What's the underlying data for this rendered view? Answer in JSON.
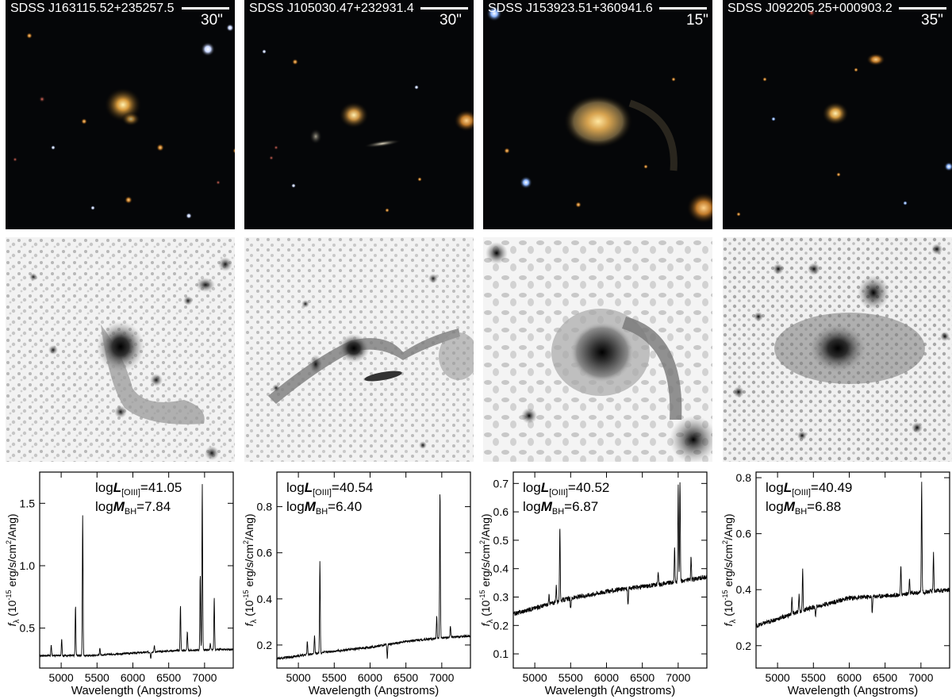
{
  "figure": {
    "columns": [
      {
        "name": "SDSS J163115.52+235257.5",
        "scale_label": "30\"",
        "log_L_value": "41.05",
        "log_M_value": "7.84",
        "spectrum": {
          "yticks": [
            "0.5",
            "1.0",
            "1.5"
          ],
          "ytick_values": [
            0.5,
            1.0,
            1.5
          ],
          "ylim": [
            0.18,
            1.75
          ],
          "continuum": [
            [
              4700,
              0.28
            ],
            [
              5400,
              0.28
            ],
            [
              6000,
              0.3
            ],
            [
              6600,
              0.32
            ],
            [
              7400,
              0.33
            ]
          ],
          "noise": 0.007,
          "lines": [
            [
              4861,
              0.08
            ],
            [
              5007,
              0.14
            ],
            [
              5200,
              0.4
            ],
            [
              5300,
              1.13
            ],
            [
              5540,
              0.06
            ],
            [
              6250,
              -0.05
            ],
            [
              6300,
              0.05
            ],
            [
              6664,
              0.36
            ],
            [
              6760,
              0.15
            ],
            [
              6940,
              0.6
            ],
            [
              6968,
              1.33
            ],
            [
              7080,
              0.05
            ],
            [
              7135,
              0.42
            ]
          ]
        }
      },
      {
        "name": "SDSS J105030.47+232931.4",
        "scale_label": "30\"",
        "log_L_value": "40.54",
        "log_M_value": "6.40",
        "spectrum": {
          "yticks": [
            "0.2",
            "0.4",
            "0.6",
            "0.8"
          ],
          "ytick_values": [
            0.2,
            0.4,
            0.6,
            0.8
          ],
          "ylim": [
            0.1,
            0.95
          ],
          "continuum": [
            [
              4700,
              0.14
            ],
            [
              5400,
              0.17
            ],
            [
              6000,
              0.19
            ],
            [
              6600,
              0.22
            ],
            [
              7400,
              0.24
            ]
          ],
          "noise": 0.005,
          "lines": [
            [
              5125,
              0.06
            ],
            [
              5225,
              0.08
            ],
            [
              5300,
              0.4
            ],
            [
              6240,
              -0.06
            ],
            [
              6930,
              0.1
            ],
            [
              6975,
              0.64
            ],
            [
              7120,
              0.05
            ]
          ]
        }
      },
      {
        "name": "SDSS J153923.51+360941.6",
        "scale_label": "15\"",
        "log_L_value": "40.52",
        "log_M_value": "6.87",
        "spectrum": {
          "yticks": [
            "0.1",
            "0.2",
            "0.3",
            "0.4",
            "0.5",
            "0.6",
            "0.7"
          ],
          "ytick_values": [
            0.1,
            0.2,
            0.3,
            0.4,
            0.5,
            0.6,
            0.7
          ],
          "ylim": [
            0.05,
            0.74
          ],
          "continuum": [
            [
              4700,
              0.24
            ],
            [
              5400,
              0.29
            ],
            [
              6000,
              0.32
            ],
            [
              6600,
              0.34
            ],
            [
              7400,
              0.37
            ]
          ],
          "noise": 0.008,
          "lines": [
            [
              5200,
              0.03
            ],
            [
              5300,
              0.06
            ],
            [
              5350,
              0.26
            ],
            [
              5500,
              -0.04
            ],
            [
              6300,
              -0.06
            ],
            [
              6720,
              0.04
            ],
            [
              6950,
              0.12
            ],
            [
              7000,
              0.34
            ],
            [
              7025,
              0.35
            ],
            [
              7180,
              0.08
            ]
          ]
        }
      },
      {
        "name": "SDSS J092205.25+000903.2",
        "scale_label": "35\"",
        "log_L_value": "40.49",
        "log_M_value": "6.88",
        "spectrum": {
          "yticks": [
            "0.2",
            "0.4",
            "0.6",
            "0.8"
          ],
          "ytick_values": [
            0.2,
            0.4,
            0.6,
            0.8
          ],
          "ylim": [
            0.12,
            0.82
          ],
          "continuum": [
            [
              4700,
              0.27
            ],
            [
              5400,
              0.33
            ],
            [
              6000,
              0.37
            ],
            [
              6600,
              0.38
            ],
            [
              7400,
              0.4
            ]
          ],
          "noise": 0.008,
          "lines": [
            [
              5200,
              0.06
            ],
            [
              5300,
              0.06
            ],
            [
              5350,
              0.15
            ],
            [
              5530,
              -0.04
            ],
            [
              6320,
              -0.06
            ],
            [
              6720,
              0.1
            ],
            [
              6840,
              0.05
            ],
            [
              7010,
              0.39
            ],
            [
              7175,
              0.14
            ]
          ]
        }
      }
    ],
    "spectra_axes": {
      "xlabel": "Wavelength (Angstroms)",
      "ylabel_prefix": "f",
      "ylabel_sub": "λ",
      "ylabel_body": " (10",
      "ylabel_exp": "-15",
      "ylabel_units": " erg/s/cm",
      "ylabel_exp2": "2",
      "ylabel_end": "/Ang)",
      "xticks": [
        "5000",
        "5500",
        "6000",
        "6500",
        "7000"
      ],
      "xtick_values": [
        5000,
        5500,
        6000,
        6500,
        7000
      ],
      "xlim": [
        4700,
        7400
      ]
    },
    "annotation_labels": {
      "log": "log",
      "L": "L",
      "L_sub": "[OIII]",
      "M": "M",
      "M_sub": "BH",
      "equals": "="
    }
  },
  "chart_data": [
    {
      "type": "line",
      "xlabel": "Wavelength (Angstroms)",
      "ylabel": "fλ (10-15 erg/s/cm2/Ang)",
      "xlim": [
        4700,
        7400
      ],
      "ylim": [
        0.18,
        1.75
      ],
      "annotations": [
        "logL[OIII]=41.05",
        "logMBH=7.84"
      ],
      "series": [
        {
          "x": [
            4700,
            4861,
            5007,
            5200,
            5300,
            5540,
            6000,
            6664,
            6940,
            6968,
            7135,
            7400
          ],
          "y": [
            0.28,
            0.36,
            0.42,
            0.68,
            1.41,
            0.34,
            0.3,
            0.68,
            0.92,
            1.65,
            0.75,
            0.33
          ]
        }
      ]
    },
    {
      "type": "line",
      "xlabel": "Wavelength (Angstroms)",
      "ylabel": "fλ (10-15 erg/s/cm2/Ang)",
      "xlim": [
        4700,
        7400
      ],
      "ylim": [
        0.1,
        0.95
      ],
      "annotations": [
        "logL[OIII]=40.54",
        "logMBH=6.40"
      ],
      "series": [
        {
          "x": [
            4700,
            5125,
            5225,
            5300,
            6000,
            6240,
            6975,
            7120,
            7400
          ],
          "y": [
            0.14,
            0.23,
            0.25,
            0.57,
            0.19,
            0.14,
            0.86,
            0.29,
            0.24
          ]
        }
      ]
    },
    {
      "type": "line",
      "xlabel": "Wavelength (Angstroms)",
      "ylabel": "fλ (10-15 erg/s/cm2/Ang)",
      "xlim": [
        4700,
        7400
      ],
      "ylim": [
        0.05,
        0.74
      ],
      "annotations": [
        "logL[OIII]=40.52",
        "logMBH=6.87"
      ],
      "series": [
        {
          "x": [
            4700,
            5350,
            5500,
            6000,
            6300,
            7000,
            7025,
            7180,
            7400
          ],
          "y": [
            0.24,
            0.55,
            0.26,
            0.32,
            0.27,
            0.69,
            0.7,
            0.44,
            0.37
          ]
        }
      ]
    },
    {
      "type": "line",
      "xlabel": "Wavelength (Angstroms)",
      "ylabel": "fλ (10-15 erg/s/cm2/Ang)",
      "xlim": [
        4700,
        7400
      ],
      "ylim": [
        0.12,
        0.82
      ],
      "annotations": [
        "logL[OIII]=40.49",
        "logMBH=6.88"
      ],
      "series": [
        {
          "x": [
            4700,
            5350,
            5530,
            6000,
            6320,
            6720,
            7010,
            7175,
            7400
          ],
          "y": [
            0.27,
            0.48,
            0.29,
            0.37,
            0.32,
            0.48,
            0.77,
            0.53,
            0.4
          ]
        }
      ]
    }
  ]
}
